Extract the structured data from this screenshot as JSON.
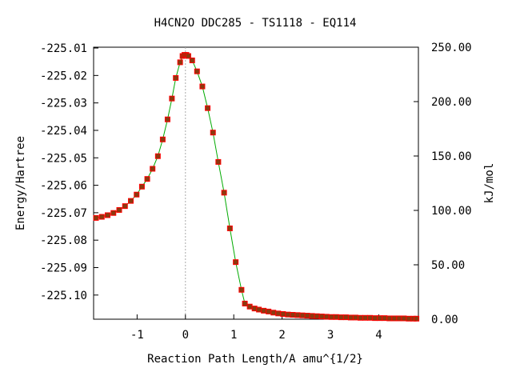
{
  "chart_data": {
    "type": "line",
    "title": "H4CN2O   DDC285 - TS1118 - EQ114",
    "xlabel": "Reaction Path Length/A amu^{1/2}",
    "ylabel": "Energy/Hartree",
    "y2label": "kJ/mol",
    "xlim": [
      -1.9,
      4.82
    ],
    "ylim": [
      -225.1088,
      -225.0097
    ],
    "y2lim": [
      0,
      250
    ],
    "x_ticks": [
      -1,
      0,
      1,
      2,
      3,
      4
    ],
    "x_tick_labels": [
      "-1",
      "0",
      "1",
      "2",
      "3",
      "4"
    ],
    "y_ticks": [
      -225.01,
      -225.02,
      -225.03,
      -225.04,
      -225.05,
      -225.06,
      -225.07,
      -225.08,
      -225.09,
      -225.1
    ],
    "y_tick_labels": [
      "-225.01",
      "-225.02",
      "-225.03",
      "-225.04",
      "-225.05",
      "-225.06",
      "-225.07",
      "-225.08",
      "-225.09",
      "-225.10"
    ],
    "y2_ticks": [
      0,
      50,
      100,
      150,
      200,
      250
    ],
    "y2_tick_labels": [
      "0.00",
      "50.00",
      "100.00",
      "150.00",
      "200.00",
      "250.00"
    ],
    "ts_marker_x": 0,
    "grid": false,
    "colors": {
      "line": "#00aa00",
      "point_fill": "#8b3a0f",
      "point_edge": "#ff0000",
      "ts_line": "#aaaaaa"
    },
    "series": [
      {
        "x": [
          -1.85,
          -1.73,
          -1.61,
          -1.49,
          -1.37,
          -1.25,
          -1.13,
          -1.01,
          -0.9,
          -0.79,
          -0.68,
          -0.57,
          -0.47,
          -0.37,
          -0.28,
          -0.2,
          -0.11,
          -0.06,
          -0.02,
          0.02,
          0.06,
          0.14,
          0.24,
          0.35,
          0.46,
          0.57,
          0.68,
          0.8,
          0.92,
          1.04,
          1.16,
          1.23,
          1.33,
          1.43,
          1.52,
          1.62,
          1.72,
          1.82,
          1.92,
          2.02,
          2.12,
          2.22,
          2.32,
          2.42,
          2.52,
          2.62,
          2.72,
          2.82,
          2.92,
          3.02,
          3.12,
          3.22,
          3.32,
          3.42,
          3.52,
          3.62,
          3.72,
          3.82,
          3.92,
          4.02,
          4.12,
          4.22,
          4.32,
          4.42,
          4.52,
          4.62,
          4.72,
          4.78
        ],
        "y": [
          -225.0719,
          -225.0715,
          -225.0709,
          -225.0701,
          -225.069,
          -225.0676,
          -225.0657,
          -225.0634,
          -225.0605,
          -225.0577,
          -225.054,
          -225.0494,
          -225.0433,
          -225.036,
          -225.0284,
          -225.0209,
          -225.0152,
          -225.0129,
          -225.0125,
          -225.0125,
          -225.0129,
          -225.0145,
          -225.0185,
          -225.024,
          -225.0319,
          -225.0408,
          -225.0515,
          -225.0627,
          -225.0757,
          -225.088,
          -225.0981,
          -225.1031,
          -225.1042,
          -225.1049,
          -225.1053,
          -225.1057,
          -225.106,
          -225.1064,
          -225.1067,
          -225.1069,
          -225.1071,
          -225.1072,
          -225.1073,
          -225.1074,
          -225.1075,
          -225.1076,
          -225.1077,
          -225.1078,
          -225.1079,
          -225.108,
          -225.108,
          -225.1081,
          -225.1081,
          -225.1082,
          -225.1082,
          -225.1083,
          -225.1083,
          -225.1083,
          -225.1084,
          -225.1084,
          -225.1084,
          -225.1085,
          -225.1085,
          -225.1085,
          -225.1085,
          -225.1086,
          -225.1086,
          -225.1086
        ]
      }
    ]
  }
}
